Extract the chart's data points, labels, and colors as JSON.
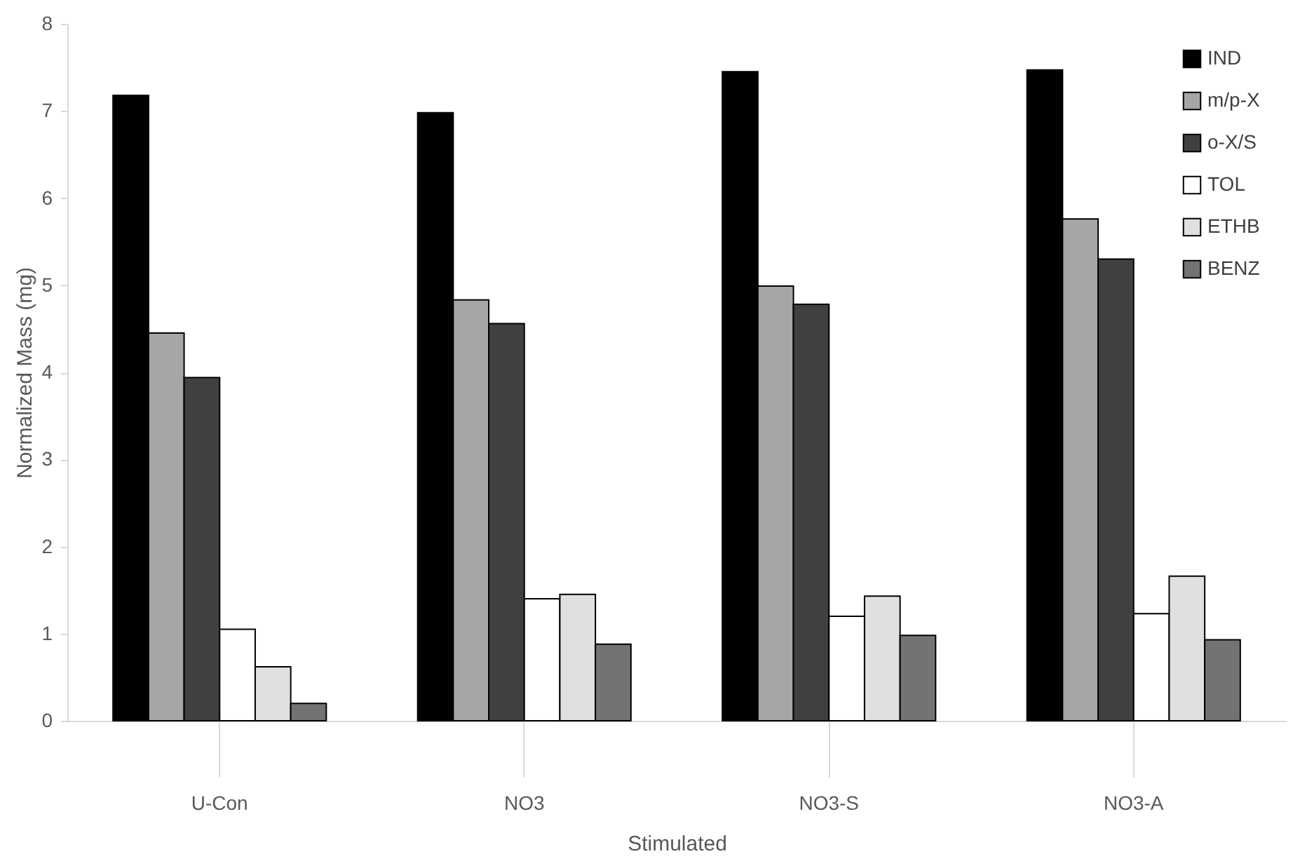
{
  "chart_data": {
    "type": "bar",
    "xlabel": "Stimulated",
    "ylabel": "Normalized Mass (mg)",
    "categories": [
      "U-Con",
      "NO3",
      "NO3-S",
      "NO3-A"
    ],
    "series": [
      {
        "name": "IND",
        "color": "#000000",
        "values": [
          7.18,
          6.98,
          7.45,
          7.47
        ]
      },
      {
        "name": "m/p-X",
        "color": "#a6a6a6",
        "values": [
          4.45,
          4.83,
          4.99,
          5.76
        ]
      },
      {
        "name": "o-X/S",
        "color": "#404040",
        "values": [
          3.94,
          4.56,
          4.78,
          5.3
        ]
      },
      {
        "name": "TOL",
        "color": "#ffffff",
        "values": [
          1.05,
          1.4,
          1.2,
          1.23
        ]
      },
      {
        "name": "ETHB",
        "color": "#e0e0e0",
        "values": [
          0.62,
          1.45,
          1.43,
          1.66
        ]
      },
      {
        "name": "BENZ",
        "color": "#737373",
        "values": [
          0.2,
          0.88,
          0.98,
          0.93
        ]
      }
    ],
    "ylim": [
      0,
      8
    ],
    "yticks": [
      0,
      1,
      2,
      3,
      4,
      5,
      6,
      7,
      8
    ],
    "grid": false,
    "legend": "top right"
  }
}
